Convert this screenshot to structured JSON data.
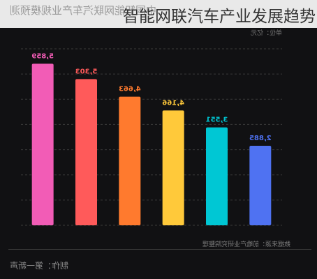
{
  "page": {
    "title": "智能网联汽车产业发展趋势",
    "mirrored_title": "中国智能网联汽车产业规模预测",
    "unit": "单位：亿元",
    "source": "数据来源：前瞻产业研究院整理",
    "maker": "制作：第一新声"
  },
  "colors": {
    "background": "#111113",
    "gridline": "#3a3a3a"
  },
  "chart_data": {
    "type": "bar",
    "title": "",
    "xlabel": "",
    "ylabel": "",
    "categories": [
      "",
      "",
      "",
      "",
      "",
      ""
    ],
    "values": [
      5859,
      5303,
      4663,
      4166,
      3551,
      2885
    ],
    "value_labels": [
      "5,859",
      "5,303",
      "4,663",
      "4,166",
      "3,551",
      "2,885"
    ],
    "bar_colors": [
      "#f25cb6",
      "#ff5a5a",
      "#ff7a2e",
      "#ffc93a",
      "#00c7d4",
      "#4f72f2"
    ],
    "ylim": [
      0,
      6400
    ],
    "grid": true,
    "label_orientation": "mirrored"
  }
}
